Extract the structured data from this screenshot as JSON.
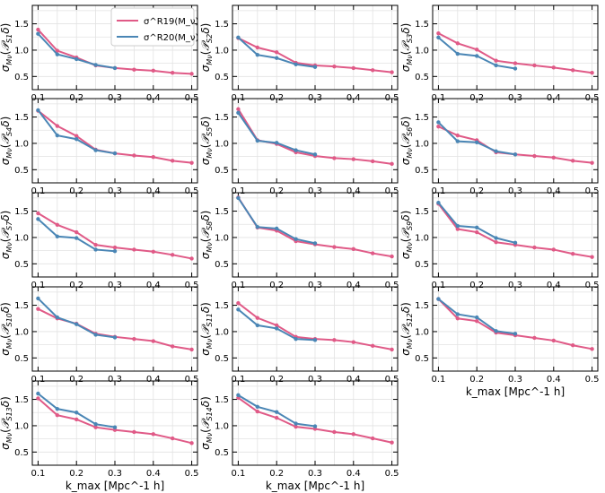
{
  "chart_data": {
    "type": "line",
    "x": [
      0.1,
      0.15,
      0.2,
      0.25,
      0.3,
      0.35,
      0.4,
      0.45,
      0.5
    ],
    "xlabel": "k_max [Mpc^-1 h]",
    "xticks": [
      "0.1",
      "0.2",
      "0.3",
      "0.4",
      "0.5"
    ],
    "xlim": [
      0.085,
      0.515
    ],
    "ylim": [
      0.25,
      1.85
    ],
    "yticks": [
      "0.5",
      "1.0",
      "1.5"
    ],
    "grid": true,
    "legend": {
      "position": "top-center (panel 1)",
      "entries": [
        {
          "text": "σ^R19(M_ν)",
          "color": "#e05a87"
        },
        {
          "text": "σ^R20(M_ν)",
          "color": "#4a86b5"
        }
      ]
    },
    "colors": {
      "R19": "#e05a87",
      "R20": "#4a86b5"
    },
    "panels": [
      {
        "sub": "1",
        "R19": [
          1.39,
          0.99,
          0.86,
          0.71,
          0.66,
          0.63,
          0.61,
          0.57,
          0.55
        ],
        "R20": [
          1.31,
          0.92,
          0.83,
          0.72,
          0.66
        ]
      },
      {
        "sub": "2",
        "R19": [
          1.23,
          1.05,
          0.96,
          0.76,
          0.71,
          0.69,
          0.66,
          0.62,
          0.58
        ],
        "R20": [
          1.24,
          0.91,
          0.85,
          0.73,
          0.68
        ]
      },
      {
        "sub": "3",
        "R19": [
          1.32,
          1.13,
          1.01,
          0.8,
          0.75,
          0.71,
          0.67,
          0.62,
          0.57
        ],
        "R20": [
          1.24,
          0.93,
          0.89,
          0.71,
          0.65
        ]
      },
      {
        "sub": "4",
        "R19": [
          1.62,
          1.33,
          1.14,
          0.88,
          0.81,
          0.77,
          0.74,
          0.67,
          0.63
        ],
        "R20": [
          1.63,
          1.15,
          1.08,
          0.87,
          0.81
        ]
      },
      {
        "sub": "5",
        "R19": [
          1.65,
          1.06,
          0.99,
          0.83,
          0.76,
          0.72,
          0.7,
          0.66,
          0.61
        ],
        "R20": [
          1.58,
          1.05,
          1.01,
          0.87,
          0.79
        ]
      },
      {
        "sub": "6",
        "R19": [
          1.32,
          1.15,
          1.06,
          0.83,
          0.79,
          0.76,
          0.73,
          0.67,
          0.63
        ],
        "R20": [
          1.4,
          1.04,
          1.02,
          0.85,
          0.79
        ]
      },
      {
        "sub": "7",
        "R19": [
          1.46,
          1.24,
          1.1,
          0.86,
          0.81,
          0.77,
          0.73,
          0.67,
          0.6
        ],
        "R20": [
          1.35,
          1.02,
          0.99,
          0.77,
          0.74
        ]
      },
      {
        "sub": "8",
        "R19": [
          1.76,
          1.19,
          1.13,
          0.93,
          0.87,
          0.82,
          0.78,
          0.7,
          0.64
        ],
        "R20": [
          1.75,
          1.2,
          1.17,
          0.97,
          0.89
        ]
      },
      {
        "sub": "9",
        "R19": [
          1.64,
          1.16,
          1.1,
          0.91,
          0.86,
          0.81,
          0.77,
          0.69,
          0.63
        ],
        "R20": [
          1.66,
          1.22,
          1.19,
          0.99,
          0.9
        ]
      },
      {
        "sub": "10",
        "R19": [
          1.43,
          1.25,
          1.15,
          0.96,
          0.9,
          0.86,
          0.82,
          0.72,
          0.66
        ],
        "R20": [
          1.63,
          1.27,
          1.14,
          0.94,
          0.89
        ]
      },
      {
        "sub": "11",
        "R19": [
          1.54,
          1.26,
          1.12,
          0.9,
          0.86,
          0.84,
          0.8,
          0.73,
          0.66
        ],
        "R20": [
          1.42,
          1.12,
          1.06,
          0.86,
          0.84
        ]
      },
      {
        "sub": "12",
        "R19": [
          1.62,
          1.25,
          1.2,
          0.98,
          0.93,
          0.88,
          0.83,
          0.74,
          0.67
        ],
        "R20": [
          1.62,
          1.33,
          1.27,
          1.01,
          0.96
        ]
      },
      {
        "sub": "13",
        "R19": [
          1.52,
          1.2,
          1.12,
          0.97,
          0.92,
          0.88,
          0.84,
          0.76,
          0.67
        ],
        "R20": [
          1.61,
          1.32,
          1.25,
          1.03,
          0.97
        ]
      },
      {
        "sub": "14",
        "R19": [
          1.53,
          1.27,
          1.15,
          0.98,
          0.94,
          0.88,
          0.84,
          0.76,
          0.68
        ],
        "R20": [
          1.58,
          1.36,
          1.26,
          1.04,
          0.99
        ]
      }
    ]
  }
}
